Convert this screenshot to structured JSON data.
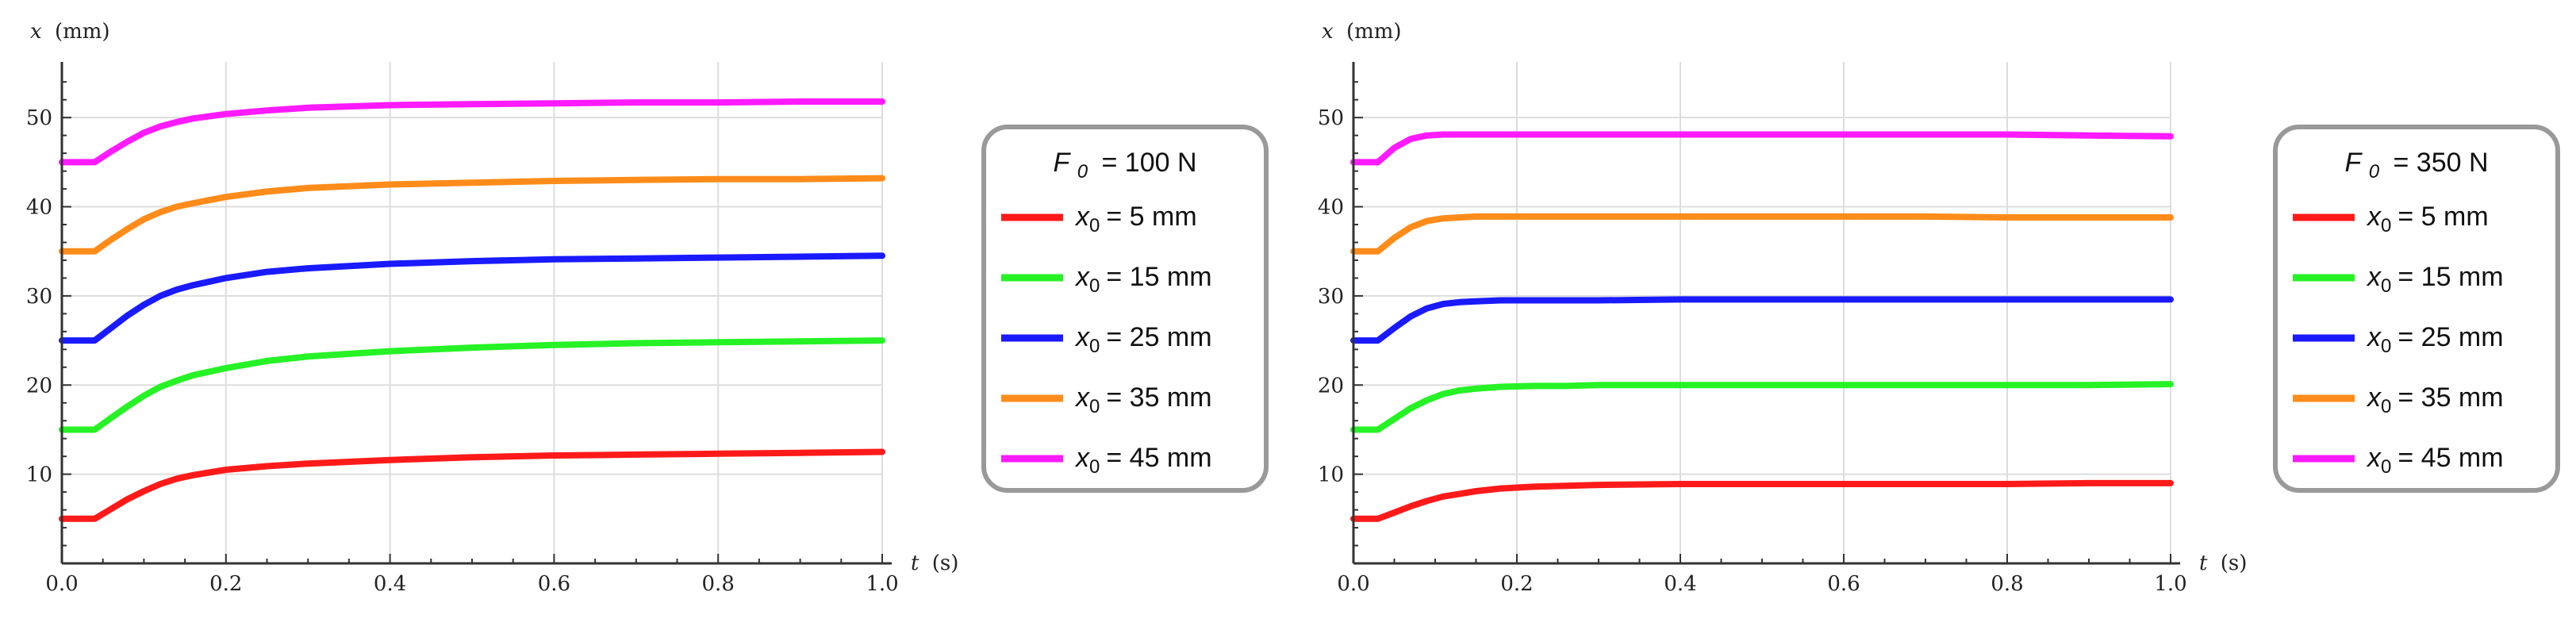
{
  "chart_data": [
    {
      "type": "line",
      "xlabel": "t",
      "xlabel_unit": "(s)",
      "ylabel": "x",
      "ylabel_unit": "(mm)",
      "xlim": [
        0,
        1.0
      ],
      "ylim": [
        0,
        55
      ],
      "x_ticks": [
        "0.0",
        "0.2",
        "0.4",
        "0.6",
        "0.8",
        "1.0"
      ],
      "y_ticks": [
        "10",
        "20",
        "30",
        "40",
        "50"
      ],
      "grid": true,
      "legend_title": {
        "symbol": "F",
        "subscript": "0",
        "value": "= 100 N"
      },
      "series": [
        {
          "name": "x0 = 5 mm",
          "label_symbol": "x",
          "label_subscript": "0",
          "label_value": "= 5 mm",
          "color": "#ff1a1a",
          "x": [
            0,
            0.04,
            0.06,
            0.08,
            0.1,
            0.12,
            0.14,
            0.16,
            0.2,
            0.25,
            0.3,
            0.4,
            0.5,
            0.6,
            0.7,
            0.8,
            0.9,
            1.0
          ],
          "y": [
            5,
            5,
            6.1,
            7.2,
            8.1,
            8.9,
            9.5,
            9.9,
            10.5,
            10.9,
            11.2,
            11.6,
            11.9,
            12.1,
            12.2,
            12.3,
            12.4,
            12.5
          ]
        },
        {
          "name": "x0 = 15 mm",
          "label_symbol": "x",
          "label_subscript": "0",
          "label_value": "= 15 mm",
          "color": "#26f226",
          "x": [
            0,
            0.04,
            0.06,
            0.08,
            0.1,
            0.12,
            0.14,
            0.16,
            0.2,
            0.25,
            0.3,
            0.4,
            0.5,
            0.6,
            0.7,
            0.8,
            0.9,
            1.0
          ],
          "y": [
            15,
            15,
            16.3,
            17.6,
            18.8,
            19.8,
            20.5,
            21.1,
            21.9,
            22.7,
            23.2,
            23.8,
            24.2,
            24.5,
            24.7,
            24.8,
            24.9,
            25.0
          ]
        },
        {
          "name": "x0 = 25 mm",
          "label_symbol": "x",
          "label_subscript": "0",
          "label_value": "= 25 mm",
          "color": "#1a1aff",
          "x": [
            0,
            0.04,
            0.06,
            0.08,
            0.1,
            0.12,
            0.14,
            0.16,
            0.2,
            0.25,
            0.3,
            0.4,
            0.5,
            0.6,
            0.7,
            0.8,
            0.9,
            1.0
          ],
          "y": [
            25,
            25,
            26.4,
            27.8,
            29.0,
            30.0,
            30.7,
            31.2,
            32.0,
            32.7,
            33.1,
            33.6,
            33.9,
            34.1,
            34.2,
            34.3,
            34.4,
            34.5
          ]
        },
        {
          "name": "x0 = 35 mm",
          "label_symbol": "x",
          "label_subscript": "0",
          "label_value": "= 35 mm",
          "color": "#ff8c1a",
          "x": [
            0,
            0.04,
            0.06,
            0.08,
            0.1,
            0.12,
            0.14,
            0.16,
            0.2,
            0.25,
            0.3,
            0.4,
            0.5,
            0.6,
            0.7,
            0.8,
            0.9,
            1.0
          ],
          "y": [
            35,
            35,
            36.3,
            37.5,
            38.6,
            39.4,
            40.0,
            40.4,
            41.1,
            41.7,
            42.1,
            42.5,
            42.7,
            42.9,
            43.0,
            43.1,
            43.1,
            43.2
          ]
        },
        {
          "name": "x0 = 45 mm",
          "label_symbol": "x",
          "label_subscript": "0",
          "label_value": "= 45 mm",
          "color": "#ff1aff",
          "x": [
            0,
            0.04,
            0.06,
            0.08,
            0.1,
            0.12,
            0.14,
            0.16,
            0.2,
            0.25,
            0.3,
            0.4,
            0.5,
            0.6,
            0.7,
            0.8,
            0.9,
            1.0
          ],
          "y": [
            45,
            45,
            46.2,
            47.3,
            48.3,
            49.0,
            49.5,
            49.9,
            50.4,
            50.8,
            51.1,
            51.4,
            51.5,
            51.6,
            51.7,
            51.7,
            51.8,
            51.8
          ]
        }
      ]
    },
    {
      "type": "line",
      "xlabel": "t",
      "xlabel_unit": "(s)",
      "ylabel": "x",
      "ylabel_unit": "(mm)",
      "xlim": [
        0,
        1.0
      ],
      "ylim": [
        0,
        55
      ],
      "x_ticks": [
        "0.0",
        "0.2",
        "0.4",
        "0.6",
        "0.8",
        "1.0"
      ],
      "y_ticks": [
        "10",
        "20",
        "30",
        "40",
        "50"
      ],
      "grid": true,
      "legend_title": {
        "symbol": "F",
        "subscript": "0",
        "value": "= 350 N"
      },
      "series": [
        {
          "name": "x0 = 5 mm",
          "label_symbol": "x",
          "label_subscript": "0",
          "label_value": "= 5 mm",
          "color": "#ff1a1a",
          "x": [
            0,
            0.03,
            0.05,
            0.07,
            0.09,
            0.11,
            0.13,
            0.15,
            0.18,
            0.22,
            0.26,
            0.3,
            0.4,
            0.5,
            0.6,
            0.7,
            0.8,
            0.9,
            1.0
          ],
          "y": [
            5,
            5,
            5.7,
            6.4,
            7.0,
            7.5,
            7.8,
            8.1,
            8.4,
            8.6,
            8.7,
            8.8,
            8.9,
            8.9,
            8.9,
            8.9,
            8.9,
            9.0,
            9.0
          ]
        },
        {
          "name": "x0 = 15 mm",
          "label_symbol": "x",
          "label_subscript": "0",
          "label_value": "= 15 mm",
          "color": "#26f226",
          "x": [
            0,
            0.03,
            0.05,
            0.07,
            0.09,
            0.11,
            0.13,
            0.15,
            0.18,
            0.22,
            0.26,
            0.3,
            0.4,
            0.5,
            0.6,
            0.7,
            0.8,
            0.9,
            1.0
          ],
          "y": [
            15,
            15,
            16.2,
            17.4,
            18.3,
            19.0,
            19.4,
            19.6,
            19.8,
            19.9,
            19.9,
            20.0,
            20.0,
            20.0,
            20.0,
            20.0,
            20.0,
            20.0,
            20.1
          ]
        },
        {
          "name": "x0 = 25 mm",
          "label_symbol": "x",
          "label_subscript": "0",
          "label_value": "= 25 mm",
          "color": "#1a1aff",
          "x": [
            0,
            0.03,
            0.05,
            0.07,
            0.09,
            0.11,
            0.13,
            0.15,
            0.18,
            0.22,
            0.26,
            0.3,
            0.4,
            0.5,
            0.6,
            0.7,
            0.8,
            0.9,
            1.0
          ],
          "y": [
            25,
            25,
            26.4,
            27.7,
            28.6,
            29.1,
            29.3,
            29.4,
            29.5,
            29.5,
            29.5,
            29.5,
            29.6,
            29.6,
            29.6,
            29.6,
            29.6,
            29.6,
            29.6
          ]
        },
        {
          "name": "x0 = 35 mm",
          "label_symbol": "x",
          "label_subscript": "0",
          "label_value": "= 35 mm",
          "color": "#ff8c1a",
          "x": [
            0,
            0.03,
            0.05,
            0.07,
            0.09,
            0.11,
            0.13,
            0.15,
            0.18,
            0.22,
            0.26,
            0.3,
            0.4,
            0.5,
            0.6,
            0.7,
            0.8,
            0.9,
            1.0
          ],
          "y": [
            35,
            35,
            36.5,
            37.7,
            38.4,
            38.7,
            38.8,
            38.9,
            38.9,
            38.9,
            38.9,
            38.9,
            38.9,
            38.9,
            38.9,
            38.9,
            38.8,
            38.8,
            38.8
          ]
        },
        {
          "name": "x0 = 45 mm",
          "label_symbol": "x",
          "label_subscript": "0",
          "label_value": "= 45 mm",
          "color": "#ff1aff",
          "x": [
            0,
            0.03,
            0.05,
            0.07,
            0.09,
            0.11,
            0.13,
            0.15,
            0.18,
            0.22,
            0.26,
            0.3,
            0.4,
            0.5,
            0.6,
            0.7,
            0.8,
            0.9,
            1.0
          ],
          "y": [
            45,
            45,
            46.6,
            47.6,
            48.0,
            48.1,
            48.1,
            48.1,
            48.1,
            48.1,
            48.1,
            48.1,
            48.1,
            48.1,
            48.1,
            48.1,
            48.1,
            48.0,
            47.9
          ]
        }
      ]
    }
  ]
}
